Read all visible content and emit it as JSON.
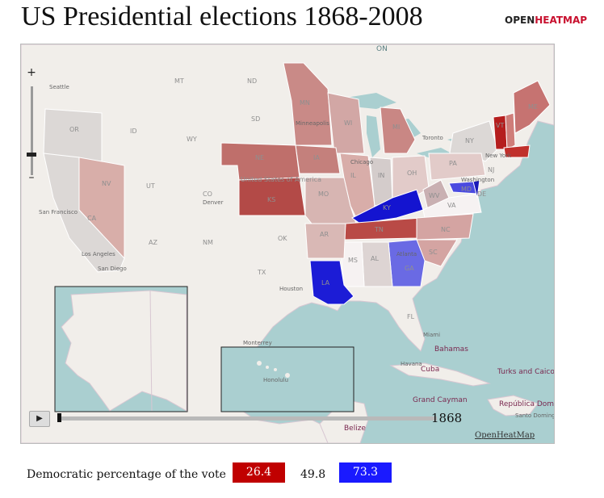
{
  "title": "US Presidential elections 1868-2008",
  "brand": {
    "part1": "OPEN",
    "part2": "HEATMAP"
  },
  "colors": {
    "low": "#c00000",
    "mid": "#ffffff",
    "high": "#1a1aff",
    "water": "#aacfd0",
    "land": "#f1eeea",
    "neutral_state": "#dcd8d6"
  },
  "map": {
    "zoom_in_label": "+",
    "zoom_out_label": "–",
    "play_label": "▶",
    "year": "1868",
    "credit": "OpenHeatMap",
    "state_labels": [
      "ND",
      "MN",
      "WI",
      "MI",
      "NY",
      "VT",
      "ME",
      "OR",
      "ID",
      "WY",
      "SD",
      "NE",
      "IA",
      "IL",
      "IN",
      "OH",
      "PA",
      "NV",
      "UT",
      "CO",
      "KS",
      "MO",
      "KY",
      "WV",
      "VA",
      "CA",
      "AZ",
      "NM",
      "OK",
      "AR",
      "TN",
      "NC",
      "SC",
      "TX",
      "LA",
      "MS",
      "AL",
      "GA",
      "FL",
      "United States of America",
      "MT",
      "NJ",
      "MD",
      "DE"
    ],
    "place_labels": [
      "Bahamas",
      "Cuba",
      "Turks and Caicos Islands",
      "Grand Cayman",
      "República Dominicana",
      "Belize",
      "San Francisco",
      "Los Angeles",
      "San Diego",
      "Toronto",
      "Chicago",
      "Washington",
      "New York",
      "Monterrey",
      "Honolulu",
      "ON",
      "Minneapolis",
      "Seattle",
      "Denver",
      "Houston",
      "Atlanta",
      "Miami",
      "Havana",
      "Santo Domingo"
    ]
  },
  "legend": {
    "label": "Democratic percentage of the vote",
    "low": "26.4",
    "mid": "49.8",
    "high": "73.3"
  }
}
